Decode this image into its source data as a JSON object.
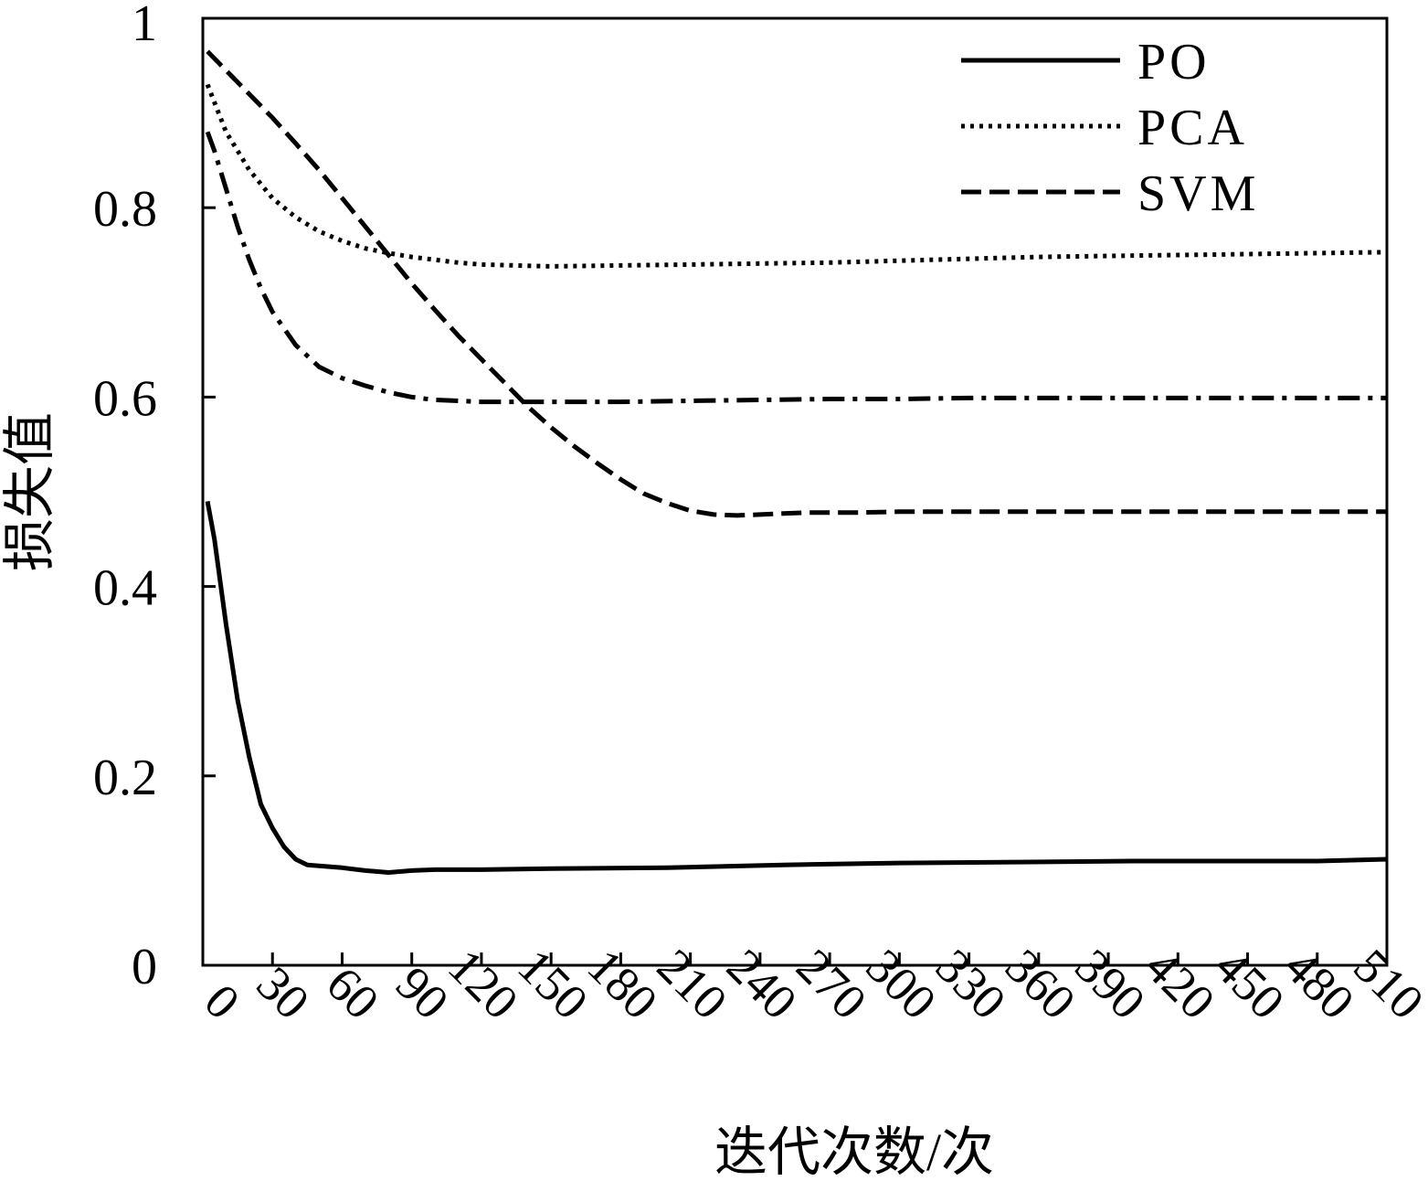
{
  "chart_data": {
    "type": "line",
    "title": "",
    "xlabel": "迭代次数/次",
    "ylabel": "损失值",
    "xlim": [
      0,
      510
    ],
    "ylim": [
      0,
      1
    ],
    "x_ticks": [
      0,
      30,
      60,
      90,
      120,
      150,
      180,
      210,
      240,
      270,
      300,
      330,
      360,
      390,
      420,
      450,
      480,
      510
    ],
    "x_tick_labels": [
      "0",
      "30",
      "60",
      "90",
      "120",
      "150",
      "180",
      "210",
      "240",
      "270",
      "300",
      "330",
      "360",
      "390",
      "420",
      "450",
      "480",
      "510"
    ],
    "y_ticks": [
      0,
      0.2,
      0.4,
      0.6,
      0.8,
      1
    ],
    "y_tick_labels": [
      "0",
      "0.2",
      "0.4",
      "0.6",
      "0.8",
      "1"
    ],
    "grid": false,
    "legend_position": "top-right",
    "series": [
      {
        "name": "PO",
        "style": "solid",
        "x": [
          2,
          5,
          10,
          15,
          20,
          25,
          30,
          35,
          40,
          45,
          50,
          60,
          70,
          80,
          90,
          100,
          120,
          150,
          200,
          250,
          300,
          350,
          400,
          450,
          480,
          510
        ],
        "y": [
          0.49,
          0.45,
          0.36,
          0.28,
          0.22,
          0.17,
          0.145,
          0.125,
          0.112,
          0.106,
          0.105,
          0.103,
          0.1,
          0.098,
          0.1,
          0.101,
          0.101,
          0.102,
          0.103,
          0.106,
          0.108,
          0.109,
          0.11,
          0.11,
          0.11,
          0.112
        ]
      },
      {
        "name": "PCA",
        "style": "dotted",
        "x": [
          2,
          10,
          20,
          30,
          40,
          50,
          60,
          70,
          80,
          90,
          100,
          110,
          120,
          150,
          180,
          210,
          240,
          270,
          300,
          330,
          360,
          390,
          420,
          450,
          480,
          510
        ],
        "y": [
          0.93,
          0.88,
          0.84,
          0.81,
          0.79,
          0.775,
          0.765,
          0.757,
          0.752,
          0.748,
          0.745,
          0.742,
          0.74,
          0.738,
          0.739,
          0.74,
          0.741,
          0.742,
          0.744,
          0.746,
          0.748,
          0.749,
          0.75,
          0.751,
          0.752,
          0.753
        ]
      },
      {
        "name": "SVM",
        "style": "dashed",
        "x": [
          2,
          10,
          20,
          30,
          40,
          50,
          60,
          70,
          80,
          90,
          100,
          110,
          120,
          130,
          140,
          150,
          160,
          170,
          180,
          190,
          200,
          210,
          220,
          230,
          240,
          250,
          260,
          270,
          280,
          300,
          330,
          360,
          390,
          420,
          450,
          480,
          510
        ],
        "y": [
          0.965,
          0.945,
          0.92,
          0.895,
          0.868,
          0.84,
          0.81,
          0.78,
          0.75,
          0.72,
          0.692,
          0.665,
          0.64,
          0.615,
          0.59,
          0.568,
          0.548,
          0.53,
          0.513,
          0.498,
          0.488,
          0.48,
          0.476,
          0.475,
          0.476,
          0.477,
          0.478,
          0.478,
          0.478,
          0.479,
          0.479,
          0.479,
          0.479,
          0.479,
          0.479,
          0.479,
          0.479
        ]
      },
      {
        "style": "dashdot",
        "x": [
          2,
          5,
          10,
          15,
          20,
          25,
          30,
          40,
          50,
          60,
          70,
          80,
          90,
          100,
          120,
          150,
          180,
          210,
          240,
          270,
          300,
          330,
          360,
          390,
          420,
          450,
          480,
          510
        ],
        "y": [
          0.88,
          0.86,
          0.82,
          0.78,
          0.745,
          0.715,
          0.69,
          0.655,
          0.632,
          0.62,
          0.612,
          0.605,
          0.6,
          0.597,
          0.595,
          0.595,
          0.595,
          0.596,
          0.597,
          0.598,
          0.598,
          0.599,
          0.599,
          0.599,
          0.599,
          0.599,
          0.599,
          0.599
        ]
      }
    ]
  }
}
